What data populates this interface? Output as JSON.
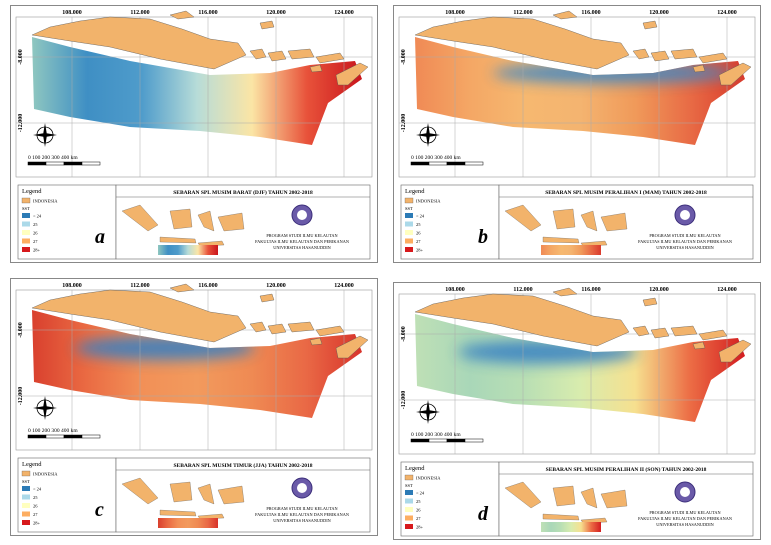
{
  "lon_ticks": [
    "108.000",
    "112.000",
    "116.000",
    "120.000",
    "124.000"
  ],
  "lat_ticks": [
    "-8.000",
    "-12.000"
  ],
  "scale_label": "0   100  200   300   400 km",
  "legend": {
    "title": "Legend",
    "land": "INDONESIA",
    "field": "SST",
    "land_color": "#f2b36b",
    "classes": [
      {
        "label": "< 24",
        "color": "#2c7bb6"
      },
      {
        "label": "25",
        "color": "#abd9e9"
      },
      {
        "label": "26",
        "color": "#ffffbf"
      },
      {
        "label": "27",
        "color": "#fdae61"
      },
      {
        "label": "28+",
        "color": "#d7191c"
      }
    ]
  },
  "institution": [
    "PROGRAM STUDI ILMU KELAUTAN",
    "FAKULTAS ILMU KELAUTAN DAN PERIKANAN",
    "UNIVERSITAS HASANUDDIN"
  ],
  "panels": [
    {
      "letter": "a",
      "title": "SEBARAN SPL MUSIM BARAT (DJF) TAHUN 2002-2018",
      "gradient": [
        "#8fc7c0",
        "#3f8fc4",
        "#4f9ccb",
        "#b7dcd8",
        "#fbe5a5",
        "#e8523a",
        "#c9151c"
      ],
      "band": null
    },
    {
      "letter": "b",
      "title": "SEBARAN SPL MUSIM PERALIHAN I (MAM) TAHUN 2002-2018",
      "gradient": [
        "#f08a55",
        "#f4a765",
        "#f6b870",
        "#f4b470",
        "#f09a5a",
        "#e86b45",
        "#d93a2c"
      ],
      "band": "#3d86c4"
    },
    {
      "letter": "c",
      "title": "SEBARAN SPL MUSIM TIMUR (JJA) TAHUN 2002-2018",
      "gradient": [
        "#d9402e",
        "#ea6b43",
        "#f29057",
        "#f29a5d",
        "#ef8a53",
        "#e96845",
        "#d8332b"
      ],
      "band": "#3a7fc0"
    },
    {
      "letter": "d",
      "title": "SEBARAN SPL MUSIM PERALIHAN II (SON) TAHUN 2002-2018",
      "gradient": [
        "#bfe0b6",
        "#a9d7b8",
        "#b9dfb4",
        "#d8ecae",
        "#f6e08f",
        "#ec6d45",
        "#d31d20"
      ],
      "band": "#3b83c2"
    }
  ]
}
